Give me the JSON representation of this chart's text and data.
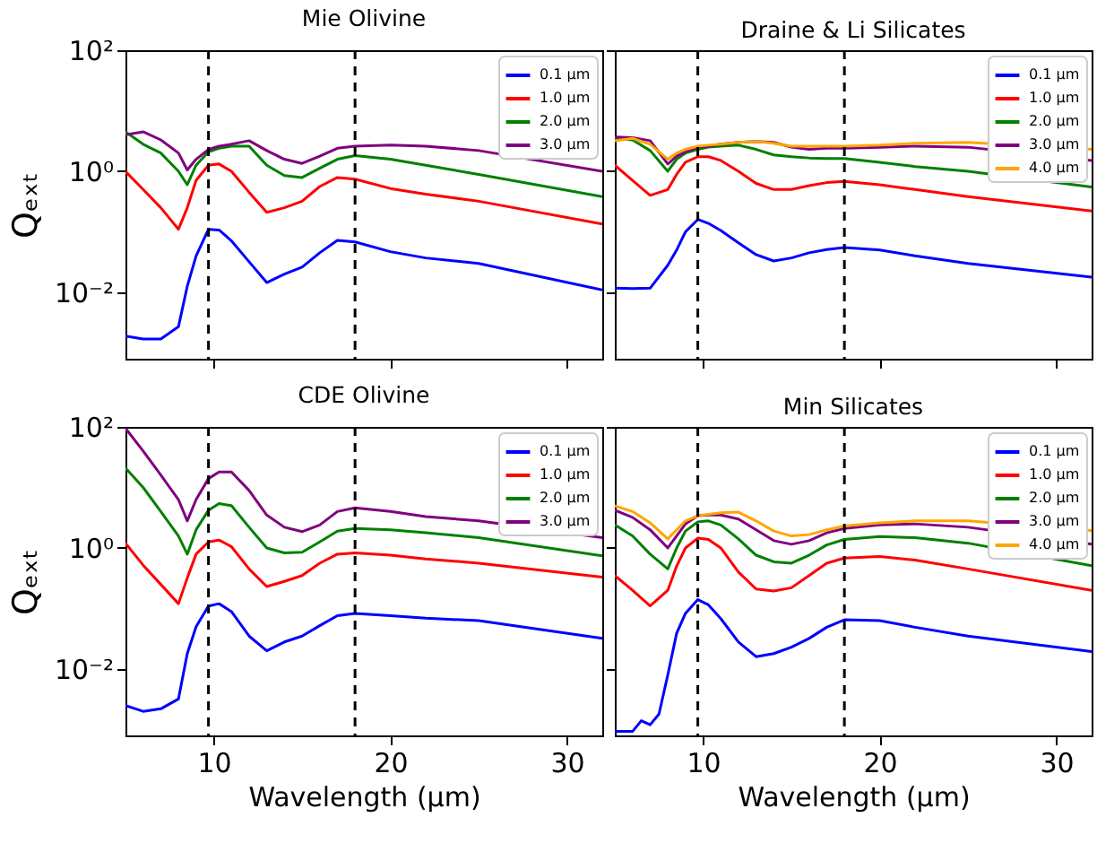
{
  "chart_data": [
    {
      "type": "line",
      "title": "Mie Olivine",
      "ylabel": "Qₑₓₜ",
      "log": "y",
      "legend": "top right",
      "tick_labels": "y",
      "xlim": [
        5,
        32
      ],
      "xticks": [
        {
          "value": 10,
          "label": null
        },
        {
          "value": 20,
          "label": null
        },
        {
          "value": 30,
          "label": null
        }
      ],
      "ylim": [
        0.0008,
        100
      ],
      "yticks": [
        {
          "value": 0.01,
          "label": "10⁻²"
        },
        {
          "value": 1,
          "label": "10⁰"
        },
        {
          "value": 100,
          "label": "10²"
        }
      ],
      "x": [
        5,
        6,
        7,
        8,
        8.5,
        9,
        9.7,
        10.3,
        11,
        12,
        13,
        14,
        15,
        16,
        17,
        18,
        20,
        22,
        25,
        32
      ],
      "ref_lines": [
        {
          "axis": "x",
          "value": 9.7,
          "color": "#000000",
          "line_style": "dashed"
        },
        {
          "axis": "x",
          "value": 18,
          "color": "#000000",
          "line_style": "dashed"
        }
      ],
      "series": [
        {
          "name": "0.1 μm",
          "color": "#0000ff",
          "values": [
            0.0019,
            0.0017,
            0.0017,
            0.0027,
            0.0126,
            0.04,
            0.11,
            0.107,
            0.071,
            0.032,
            0.0145,
            0.02,
            0.026,
            0.045,
            0.072,
            0.068,
            0.047,
            0.037,
            0.03,
            0.011
          ]
        },
        {
          "name": "1.0 μm",
          "color": "#ff0000",
          "values": [
            1.0,
            0.5,
            0.25,
            0.11,
            0.25,
            0.71,
            1.26,
            1.32,
            1.0,
            0.45,
            0.21,
            0.25,
            0.32,
            0.56,
            0.79,
            0.74,
            0.52,
            0.42,
            0.32,
            0.135
          ]
        },
        {
          "name": "2.0 μm",
          "color": "#008000",
          "values": [
            4.5,
            2.8,
            2.0,
            1.0,
            0.6,
            1.26,
            2.1,
            2.4,
            2.6,
            2.6,
            1.26,
            0.85,
            0.79,
            1.12,
            1.58,
            1.82,
            1.58,
            1.26,
            0.89,
            0.38
          ]
        },
        {
          "name": "3.0 μm",
          "color": "#800080",
          "values": [
            4.0,
            4.5,
            3.3,
            2.0,
            1.05,
            1.58,
            2.3,
            2.6,
            2.8,
            3.2,
            2.2,
            1.58,
            1.35,
            1.78,
            2.4,
            2.6,
            2.7,
            2.6,
            2.2,
            1.0
          ]
        }
      ]
    },
    {
      "type": "line",
      "title": "Draine & Li Silicates",
      "log": "y",
      "legend": "top right",
      "tick_labels": false,
      "xlim": [
        5,
        32
      ],
      "xticks": [
        {
          "value": 10,
          "label": null
        },
        {
          "value": 20,
          "label": null
        },
        {
          "value": 30,
          "label": null
        }
      ],
      "ylim": [
        0.0008,
        100
      ],
      "yticks": [
        {
          "value": 0.01,
          "label": null
        },
        {
          "value": 1,
          "label": null
        },
        {
          "value": 100,
          "label": null
        }
      ],
      "x": [
        5,
        6,
        7,
        8,
        8.5,
        9,
        9.7,
        10.3,
        11,
        12,
        13,
        14,
        15,
        16,
        17,
        18,
        20,
        22,
        25,
        32
      ],
      "ref_lines": [
        {
          "axis": "x",
          "value": 9.7,
          "color": "#000000",
          "line_style": "dashed"
        },
        {
          "axis": "x",
          "value": 18,
          "color": "#000000",
          "line_style": "dashed"
        }
      ],
      "series": [
        {
          "name": "0.1 μm",
          "color": "#0000ff",
          "values": [
            0.0117,
            0.0115,
            0.0117,
            0.028,
            0.05,
            0.1,
            0.16,
            0.138,
            0.105,
            0.066,
            0.042,
            0.033,
            0.037,
            0.045,
            0.051,
            0.055,
            0.05,
            0.04,
            0.03,
            0.0178
          ]
        },
        {
          "name": "1.0 μm",
          "color": "#ff0000",
          "values": [
            1.26,
            0.71,
            0.4,
            0.5,
            0.89,
            1.41,
            1.74,
            1.74,
            1.51,
            1.0,
            0.63,
            0.5,
            0.5,
            0.58,
            0.65,
            0.68,
            0.6,
            0.5,
            0.38,
            0.22
          ]
        },
        {
          "name": "2.0 μm",
          "color": "#008000",
          "values": [
            3.5,
            3.3,
            2.2,
            1.0,
            1.58,
            2.0,
            2.3,
            2.5,
            2.6,
            2.7,
            2.3,
            1.86,
            1.74,
            1.66,
            1.62,
            1.62,
            1.41,
            1.2,
            1.0,
            0.55
          ]
        },
        {
          "name": "3.0 μm",
          "color": "#800080",
          "values": [
            3.7,
            3.6,
            3.2,
            1.32,
            1.78,
            2.1,
            2.5,
            2.6,
            2.8,
            3.0,
            3.1,
            3.0,
            2.5,
            2.3,
            2.4,
            2.4,
            2.5,
            2.6,
            2.5,
            1.5
          ]
        },
        {
          "name": "4.0 μm",
          "color": "#ffa500",
          "values": [
            3.2,
            3.5,
            2.8,
            1.58,
            2.0,
            2.3,
            2.6,
            2.7,
            2.8,
            3.0,
            3.1,
            2.9,
            2.6,
            2.6,
            2.6,
            2.6,
            2.7,
            2.9,
            3.0,
            2.3
          ]
        }
      ]
    },
    {
      "type": "line",
      "title": "CDE Olivine",
      "xlabel": "Wavelength (μm)",
      "ylabel": "Qₑₓₜ",
      "log": "y",
      "legend": "top right",
      "xlim": [
        5,
        32
      ],
      "xticks": [
        10,
        20,
        30
      ],
      "ylim": [
        0.0008,
        100
      ],
      "yticks": [
        {
          "value": 0.01,
          "label": "10⁻²"
        },
        {
          "value": 1,
          "label": "10⁰"
        },
        {
          "value": 100,
          "label": "10²"
        }
      ],
      "x": [
        5,
        6,
        7,
        8,
        8.5,
        9,
        9.7,
        10.3,
        11,
        12,
        13,
        14,
        15,
        16,
        17,
        18,
        20,
        22,
        25,
        32
      ],
      "ref_lines": [
        {
          "axis": "x",
          "value": 9.7,
          "color": "#000000",
          "line_style": "dashed"
        },
        {
          "axis": "x",
          "value": 18,
          "color": "#000000",
          "line_style": "dashed"
        }
      ],
      "series": [
        {
          "name": "0.1 μm",
          "color": "#0000ff",
          "values": [
            0.0025,
            0.002,
            0.0022,
            0.0032,
            0.018,
            0.05,
            0.11,
            0.12,
            0.089,
            0.035,
            0.02,
            0.028,
            0.035,
            0.052,
            0.076,
            0.083,
            0.076,
            0.069,
            0.063,
            0.032
          ]
        },
        {
          "name": "1.0 μm",
          "color": "#ff0000",
          "values": [
            1.2,
            0.52,
            0.25,
            0.12,
            0.32,
            0.79,
            1.26,
            1.35,
            1.05,
            0.45,
            0.23,
            0.28,
            0.35,
            0.56,
            0.79,
            0.83,
            0.76,
            0.66,
            0.56,
            0.33
          ]
        },
        {
          "name": "2.0 μm",
          "color": "#008000",
          "values": [
            21,
            10,
            4.0,
            1.58,
            0.79,
            2.0,
            4.2,
            5.4,
            5.0,
            2.2,
            1.0,
            0.83,
            0.85,
            1.26,
            1.9,
            2.1,
            2.0,
            1.78,
            1.48,
            0.74
          ]
        },
        {
          "name": "3.0 μm",
          "color": "#800080",
          "values": [
            95,
            40,
            16,
            6.3,
            2.8,
            6.3,
            14,
            18,
            18,
            8.9,
            3.5,
            2.2,
            1.86,
            2.4,
            4.0,
            4.6,
            4.0,
            3.3,
            2.8,
            1.48
          ]
        }
      ]
    },
    {
      "type": "line",
      "title": "Min Silicates",
      "xlabel": "Wavelength (μm)",
      "log": "y",
      "legend": "top right",
      "tick_labels": "x",
      "xlim": [
        5,
        32
      ],
      "xticks": [
        10,
        20,
        30
      ],
      "ylim": [
        0.0008,
        100
      ],
      "yticks": [
        {
          "value": 0.01,
          "label": null
        },
        {
          "value": 1,
          "label": null
        },
        {
          "value": 100,
          "label": null
        }
      ],
      "x": [
        5,
        6,
        7,
        8,
        8.5,
        9,
        9.7,
        10.3,
        11,
        12,
        13,
        14,
        15,
        16,
        17,
        18,
        20,
        22,
        25,
        32
      ],
      "ref_lines": [
        {
          "axis": "x",
          "value": 9.7,
          "color": "#000000",
          "line_style": "dashed"
        },
        {
          "axis": "x",
          "value": 18,
          "color": "#000000",
          "line_style": "dashed"
        }
      ],
      "series": [
        {
          "name": "0.1 μm",
          "color": "#0000ff",
          "x": [
            5,
            6,
            6.5,
            7,
            7.5,
            8,
            8.5,
            9,
            9.7,
            10.3,
            11,
            12,
            13,
            14,
            15,
            16,
            17,
            18,
            20,
            22,
            25,
            32
          ],
          "values": [
            0.00093,
            0.00093,
            0.0014,
            0.0012,
            0.0018,
            0.008,
            0.039,
            0.083,
            0.14,
            0.115,
            0.068,
            0.028,
            0.016,
            0.018,
            0.023,
            0.032,
            0.049,
            0.065,
            0.063,
            0.049,
            0.035,
            0.0195
          ]
        },
        {
          "name": "1.0 μm",
          "color": "#ff0000",
          "values": [
            0.35,
            0.2,
            0.11,
            0.2,
            0.5,
            1.0,
            1.45,
            1.38,
            1.0,
            0.4,
            0.21,
            0.195,
            0.22,
            0.35,
            0.56,
            0.68,
            0.72,
            0.63,
            0.45,
            0.2
          ]
        },
        {
          "name": "2.0 μm",
          "color": "#008000",
          "values": [
            2.4,
            1.58,
            0.79,
            0.45,
            1.0,
            1.9,
            2.7,
            2.8,
            2.4,
            1.41,
            0.76,
            0.59,
            0.56,
            0.76,
            1.12,
            1.38,
            1.55,
            1.48,
            1.2,
            0.51
          ]
        },
        {
          "name": "3.0 μm",
          "color": "#800080",
          "values": [
            4.2,
            3.2,
            2.0,
            1.0,
            1.58,
            2.5,
            3.4,
            3.5,
            3.5,
            3.0,
            2.0,
            1.32,
            1.15,
            1.32,
            1.78,
            2.1,
            2.4,
            2.5,
            2.2,
            1.15
          ]
        },
        {
          "name": "4.0 μm",
          "color": "#ffa500",
          "values": [
            5.0,
            4.0,
            2.6,
            1.41,
            2.0,
            2.8,
            3.4,
            3.6,
            3.8,
            3.9,
            2.8,
            1.9,
            1.58,
            1.66,
            2.0,
            2.3,
            2.6,
            2.8,
            2.8,
            1.95
          ]
        }
      ]
    }
  ]
}
